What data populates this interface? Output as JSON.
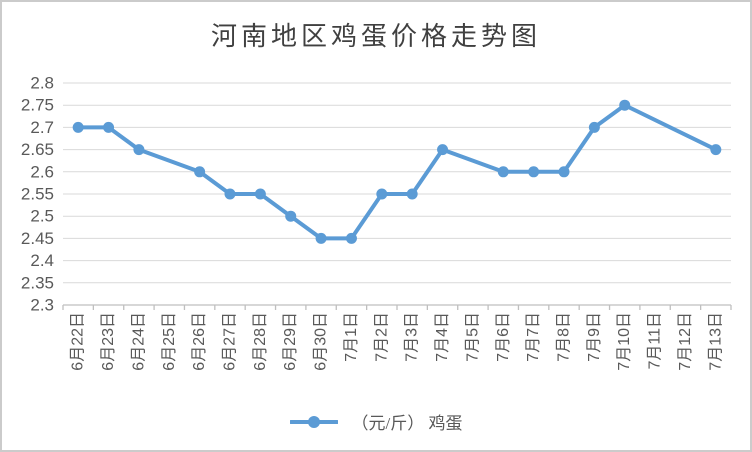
{
  "title": {
    "text": "河南地区鸡蛋价格走势图",
    "color": "#404040"
  },
  "legend": {
    "label": "（元/斤） 鸡蛋",
    "position": "bottom",
    "marker": "line-with-circle-icon"
  },
  "colors": {
    "series_line": "#5B9BD5",
    "gridline": "#D9D9D9",
    "axis_line": "#BFBFBF",
    "tick_label": "#595959",
    "background": "#FFFFFF",
    "frame_border": "#CBCBCB"
  },
  "chart_data": {
    "type": "line",
    "title": "河南地区鸡蛋价格走势图",
    "xlabel": "",
    "ylabel": "",
    "categories": [
      "6月22日",
      "6月23日",
      "6月24日",
      "6月25日",
      "6月26日",
      "6月27日",
      "6月28日",
      "6月29日",
      "6月30日",
      "7月1日",
      "7月2日",
      "7月3日",
      "7月4日",
      "7月5日",
      "7月6日",
      "7月7日",
      "7月8日",
      "7月9日",
      "7月10日",
      "7月11日",
      "7月12日",
      "7月13日"
    ],
    "series": [
      {
        "name": "（元/斤） 鸡蛋",
        "values": [
          2.7,
          2.7,
          2.65,
          null,
          2.6,
          2.55,
          2.55,
          2.5,
          2.45,
          2.45,
          2.55,
          2.55,
          2.65,
          null,
          2.6,
          2.6,
          2.6,
          2.7,
          2.75,
          null,
          null,
          2.65
        ]
      }
    ],
    "ylim": [
      2.3,
      2.8
    ],
    "yticks": [
      2.3,
      2.35,
      2.4,
      2.45,
      2.5,
      2.55,
      2.6,
      2.65,
      2.7,
      2.75,
      2.8
    ],
    "ytick_labels": [
      "2.3",
      "2.35",
      "2.4",
      "2.45",
      "2.5",
      "2.55",
      "2.6",
      "2.65",
      "2.7",
      "2.75",
      "2.8"
    ],
    "grid": true,
    "legend_position": "bottom",
    "x_labels_rotation": -90,
    "connect_gaps": true,
    "missing_points": [
      "6月25日",
      "7月5日",
      "7月11日",
      "7月12日"
    ]
  }
}
